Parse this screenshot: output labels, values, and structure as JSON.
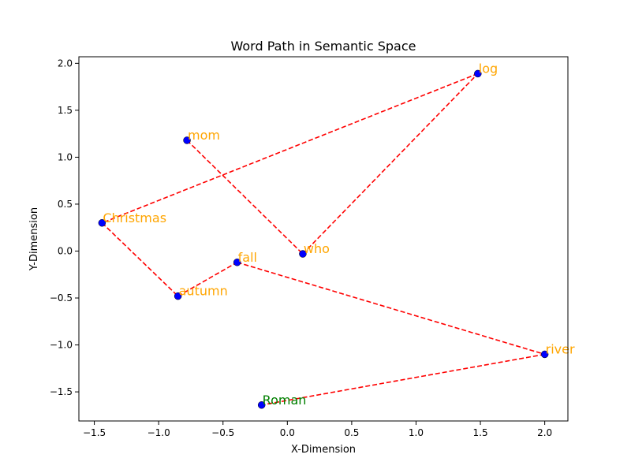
{
  "chart_data": {
    "type": "scatter",
    "title": "Word Path in Semantic Space",
    "xlabel": "X-Dimension",
    "ylabel": "Y-Dimension",
    "xlim": [
      -1.62,
      2.18
    ],
    "ylim": [
      -1.81,
      2.07
    ],
    "xticks": [
      -1.5,
      -1.0,
      -0.5,
      0.0,
      0.5,
      1.0,
      1.5,
      2.0
    ],
    "yticks": [
      -1.5,
      -1.0,
      -0.5,
      0.0,
      0.5,
      1.0,
      1.5,
      2.0
    ],
    "xtick_labels": [
      "−1.5",
      "−1.0",
      "−0.5",
      "0.0",
      "0.5",
      "1.0",
      "1.5",
      "2.0"
    ],
    "ytick_labels": [
      "−1.5",
      "−1.0",
      "−0.5",
      "0.0",
      "0.5",
      "1.0",
      "1.5",
      "2.0"
    ],
    "grid": false,
    "point_color": "#0000ff",
    "path_color": "#ff0000",
    "label_color": "#ffa500",
    "start_label_color": "#008000",
    "points": [
      {
        "word": "mom",
        "x": -0.78,
        "y": 1.18
      },
      {
        "word": "who",
        "x": 0.12,
        "y": -0.03
      },
      {
        "word": "log",
        "x": 1.48,
        "y": 1.89
      },
      {
        "word": "Christmas",
        "x": -1.44,
        "y": 0.3
      },
      {
        "word": "autumn",
        "x": -0.85,
        "y": -0.48
      },
      {
        "word": "fall",
        "x": -0.39,
        "y": -0.12
      },
      {
        "word": "river",
        "x": 2.0,
        "y": -1.1
      },
      {
        "word": "Roman",
        "x": -0.2,
        "y": -1.64
      }
    ]
  }
}
